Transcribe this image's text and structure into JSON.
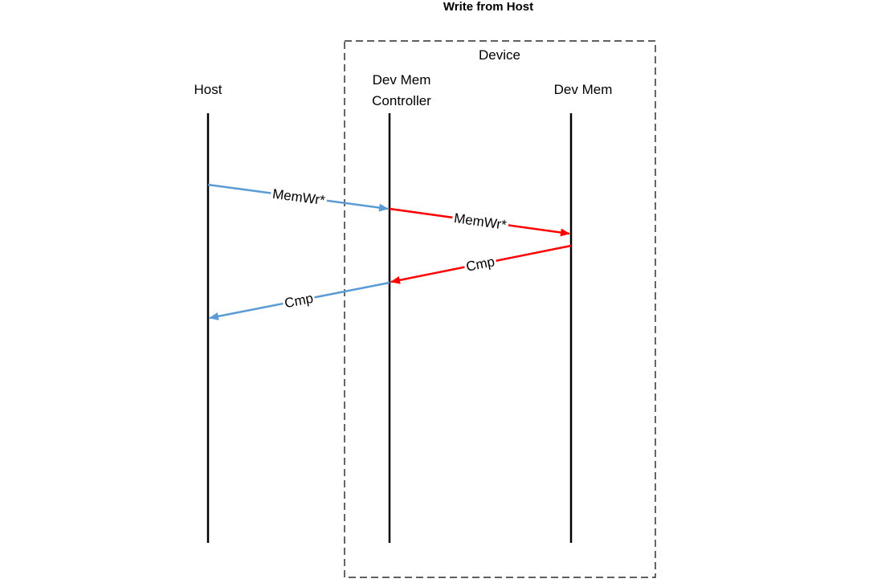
{
  "title": "Write from Host",
  "device_box": {
    "label": "Device"
  },
  "participants": [
    {
      "id": "host",
      "lines": [
        "Host"
      ]
    },
    {
      "id": "controller",
      "lines": [
        "Dev Mem",
        "Controller"
      ]
    },
    {
      "id": "devmem",
      "lines": [
        "Dev Mem"
      ]
    }
  ],
  "messages": [
    {
      "from": "host",
      "to": "controller",
      "label": "MemWr*",
      "color": "#5b9bd5"
    },
    {
      "from": "controller",
      "to": "devmem",
      "label": "MemWr*",
      "color": "#ff0000"
    },
    {
      "from": "devmem",
      "to": "controller",
      "label": "Cmp",
      "color": "#ff0000"
    },
    {
      "from": "controller",
      "to": "host",
      "label": "Cmp",
      "color": "#5b9bd5"
    }
  ]
}
